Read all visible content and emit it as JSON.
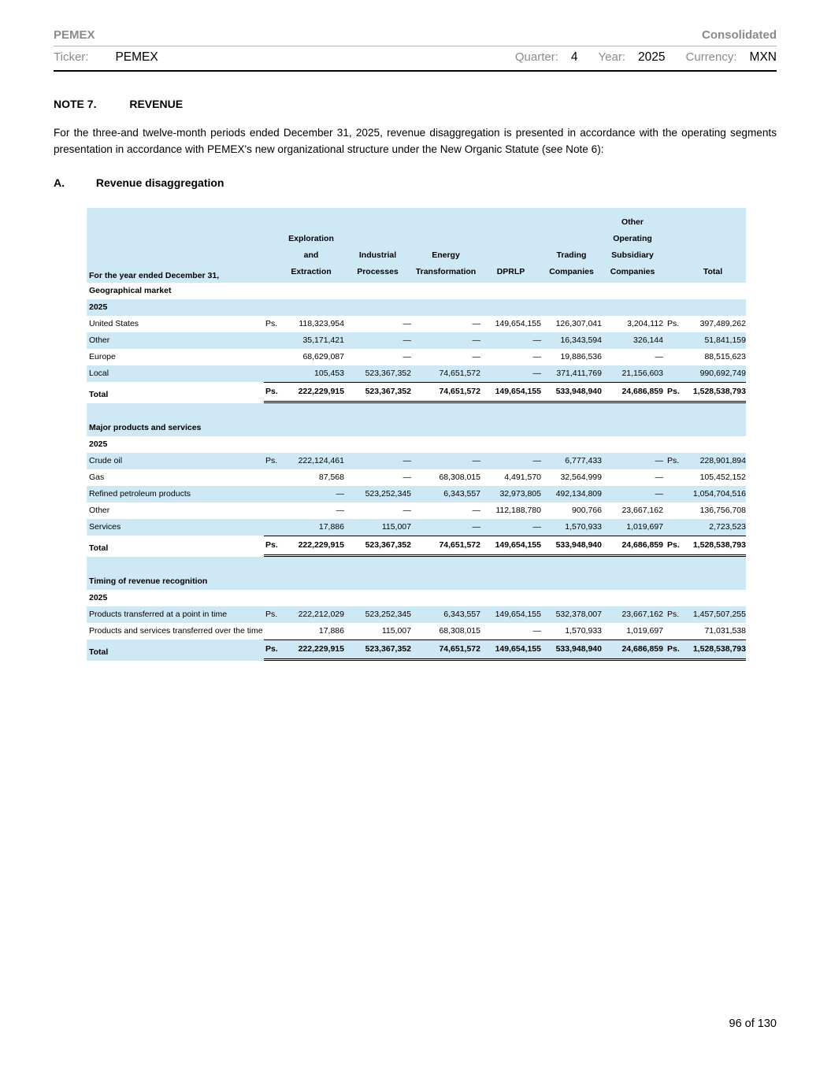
{
  "header": {
    "company": "PEMEX",
    "report_type": "Consolidated",
    "ticker_label": "Ticker:",
    "ticker_value": "PEMEX",
    "quarter_label": "Quarter:",
    "quarter_value": "4",
    "year_label": "Year:",
    "year_value": "2025",
    "currency_label": "Currency:",
    "currency_value": "MXN"
  },
  "note": {
    "number": "NOTE 7.",
    "title": "REVENUE",
    "paragraph": "For the three-and twelve-month periods ended December 31, 2025, revenue disaggregation is presented in accordance with the operating segments presentation in accordance with PEMEX's new organizational structure under the New Organic Statute (see Note 6):"
  },
  "section": {
    "letter": "A.",
    "title": "Revenue disaggregation"
  },
  "colors": {
    "stripe_blue": "#cfe8f5",
    "muted_gray": "#8b8b8b"
  },
  "table": {
    "header": {
      "row_label": "For the year ended December 31,",
      "columns": [
        {
          "lines": [
            "Exploration",
            "and",
            "Extraction"
          ]
        },
        {
          "lines": [
            "Industrial",
            "Processes"
          ]
        },
        {
          "lines": [
            "Energy",
            "Transformation"
          ]
        },
        {
          "lines": [
            "DPRLP"
          ]
        },
        {
          "lines": [
            "Trading",
            "Companies"
          ]
        },
        {
          "lines": [
            "Other",
            "Operating",
            "Subsidiary",
            "Companies"
          ]
        },
        {
          "lines": [
            "Total"
          ]
        }
      ]
    },
    "rows": [
      {
        "type": "section",
        "label": "Geographical market",
        "shaded": false
      },
      {
        "type": "year",
        "label": "2025",
        "shaded": true
      },
      {
        "type": "data",
        "label": "United States",
        "shaded": false,
        "ps_left": "Ps.",
        "values": [
          "118,323,954",
          "—",
          "—",
          "149,654,155",
          "126,307,041",
          "3,204,112"
        ],
        "ps_right": "Ps.",
        "total": "397,489,262"
      },
      {
        "type": "data",
        "label": "Other",
        "shaded": true,
        "ps_left": "",
        "values": [
          "35,171,421",
          "—",
          "—",
          "—",
          "16,343,594",
          "326,144"
        ],
        "ps_right": "",
        "total": "51,841,159"
      },
      {
        "type": "data",
        "label": "Europe",
        "shaded": false,
        "ps_left": "",
        "values": [
          "68,629,087",
          "—",
          "—",
          "—",
          "19,886,536",
          "—"
        ],
        "ps_right": "",
        "total": "88,515,623"
      },
      {
        "type": "data",
        "label": "Local",
        "shaded": true,
        "ps_left": "",
        "values": [
          "105,453",
          "523,367,352",
          "74,651,572",
          "—",
          "371,411,769",
          "21,156,603"
        ],
        "ps_right": "",
        "total": "990,692,749"
      },
      {
        "type": "total",
        "label": "Total",
        "shaded": false,
        "ps_left": "Ps.",
        "values": [
          "222,229,915",
          "523,367,352",
          "74,651,572",
          "149,654,155",
          "533,948,940",
          "24,686,859"
        ],
        "ps_right": "Ps.",
        "total": "1,528,538,793"
      },
      {
        "type": "spacer",
        "shaded": true
      },
      {
        "type": "section",
        "label": "Major products and services",
        "shaded": true
      },
      {
        "type": "year",
        "label": "2025",
        "shaded": false
      },
      {
        "type": "data",
        "label": "Crude oil",
        "shaded": true,
        "ps_left": "Ps.",
        "values": [
          "222,124,461",
          "—",
          "—",
          "—",
          "6,777,433",
          "—"
        ],
        "ps_right": "Ps.",
        "total": "228,901,894"
      },
      {
        "type": "data",
        "label": "Gas",
        "shaded": false,
        "ps_left": "",
        "values": [
          "87,568",
          "—",
          "68,308,015",
          "4,491,570",
          "32,564,999",
          "—"
        ],
        "ps_right": "",
        "total": "105,452,152"
      },
      {
        "type": "data",
        "label": "Refined petroleum products",
        "shaded": true,
        "ps_left": "",
        "values": [
          "—",
          "523,252,345",
          "6,343,557",
          "32,973,805",
          "492,134,809",
          "—"
        ],
        "ps_right": "",
        "total": "1,054,704,516"
      },
      {
        "type": "data",
        "label": "Other",
        "shaded": false,
        "ps_left": "",
        "values": [
          "—",
          "—",
          "—",
          "112,188,780",
          "900,766",
          "23,667,162"
        ],
        "ps_right": "",
        "total": "136,756,708"
      },
      {
        "type": "data",
        "label": "Services",
        "shaded": true,
        "ps_left": "",
        "values": [
          "17,886",
          "115,007",
          "—",
          "—",
          "1,570,933",
          "1,019,697"
        ],
        "ps_right": "",
        "total": "2,723,523"
      },
      {
        "type": "total",
        "label": "Total",
        "shaded": false,
        "ps_left": "Ps.",
        "values": [
          "222,229,915",
          "523,367,352",
          "74,651,572",
          "149,654,155",
          "533,948,940",
          "24,686,859"
        ],
        "ps_right": "Ps.",
        "total": "1,528,538,793"
      },
      {
        "type": "spacer",
        "shaded": true
      },
      {
        "type": "section",
        "label": "Timing of revenue recognition",
        "shaded": true
      },
      {
        "type": "year",
        "label": "2025",
        "shaded": false
      },
      {
        "type": "data",
        "label": "Products transferred at a point in time",
        "shaded": true,
        "ps_left": "Ps.",
        "values": [
          "222,212,029",
          "523,252,345",
          "6,343,557",
          "149,654,155",
          "532,378,007",
          "23,667,162"
        ],
        "ps_right": "Ps.",
        "total": "1,457,507,255"
      },
      {
        "type": "data",
        "label": "Products and services transferred over the time",
        "shaded": false,
        "ps_left": "",
        "values": [
          "17,886",
          "115,007",
          "68,308,015",
          "—",
          "1,570,933",
          "1,019,697"
        ],
        "ps_right": "",
        "total": "71,031,538"
      },
      {
        "type": "total",
        "label": "Total",
        "shaded": true,
        "ps_left": "Ps.",
        "values": [
          "222,229,915",
          "523,367,352",
          "74,651,572",
          "149,654,155",
          "533,948,940",
          "24,686,859"
        ],
        "ps_right": "Ps.",
        "total": "1,528,538,793"
      }
    ]
  },
  "footer": {
    "page_number": "96 of 130"
  }
}
